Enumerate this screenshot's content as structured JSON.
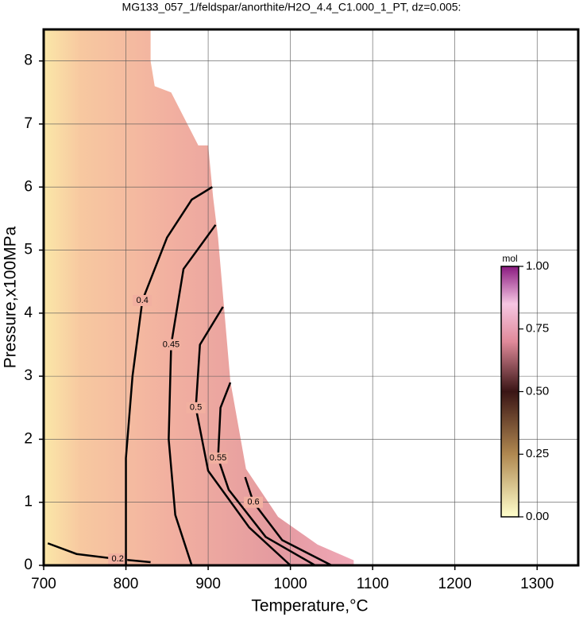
{
  "chart_data": {
    "type": "contour",
    "title": "MG133_057_1/feldspar/anorthite/H2O_4.4_C1.000_1_PT, dz=0.005:",
    "x_label": "Temperature,°C",
    "y_label": "Pressure,x100MPa",
    "xlim": [
      700,
      1350
    ],
    "xticks": [
      700,
      800,
      900,
      1000,
      1100,
      1200,
      1300
    ],
    "ylim": [
      0,
      8.5
    ],
    "yticks": [
      0,
      1,
      2,
      3,
      4,
      5,
      6,
      7,
      8
    ],
    "grid": true,
    "domain": {
      "x": [
        700,
        830,
        830,
        835,
        855,
        888,
        900,
        906,
        912,
        927,
        946,
        985,
        1033,
        1077,
        1077,
        700
      ],
      "y": [
        8.5,
        8.5,
        8.0,
        7.6,
        7.5,
        6.66,
        6.66,
        5.84,
        5.2,
        2.92,
        1.53,
        0.77,
        0.33,
        0.08,
        0,
        0
      ]
    },
    "contours": [
      {
        "level": 0.2,
        "x": [
          705,
          740,
          790,
          830
        ],
        "y": [
          0.35,
          0.18,
          0.1,
          0.05
        ]
      },
      {
        "level": 0.4,
        "x": [
          800,
          800,
          808,
          820,
          850,
          880,
          905
        ],
        "y": [
          0,
          1.7,
          3.0,
          4.2,
          5.2,
          5.8,
          6.0
        ]
      },
      {
        "level": 0.45,
        "x": [
          880,
          860,
          852,
          855,
          870,
          909
        ],
        "y": [
          0,
          0.8,
          2.0,
          3.5,
          4.7,
          5.4
        ]
      },
      {
        "level": 0.5,
        "x": [
          1000,
          950,
          900,
          885,
          890,
          918
        ],
        "y": [
          0,
          0.6,
          1.5,
          2.5,
          3.5,
          4.1
        ]
      },
      {
        "level": 0.55,
        "x": [
          1030,
          970,
          925,
          912,
          915,
          927
        ],
        "y": [
          0,
          0.45,
          1.2,
          1.7,
          2.5,
          2.9
        ]
      },
      {
        "level": 0.6,
        "x": [
          1050,
          990,
          955,
          945
        ],
        "y": [
          0,
          0.4,
          1.0,
          1.4
        ]
      }
    ],
    "colorbar_label": "mol",
    "colorscale": [
      [
        0,
        "#ffffcc"
      ],
      [
        0.25,
        "#b08850"
      ],
      [
        0.5,
        "#3a1515"
      ],
      [
        0.7,
        "#e08a9a"
      ],
      [
        0.85,
        "#f6c6e2"
      ],
      [
        1,
        "#8a1a80"
      ]
    ],
    "clim": [
      0,
      1
    ],
    "cticks": [
      {
        "value": 0,
        "label": "0.00"
      },
      {
        "value": 0.25,
        "label": "0.25"
      },
      {
        "value": 0.5,
        "label": "0.50"
      },
      {
        "value": 0.75,
        "label": "0.75"
      },
      {
        "value": 1,
        "label": "1.00"
      }
    ]
  }
}
